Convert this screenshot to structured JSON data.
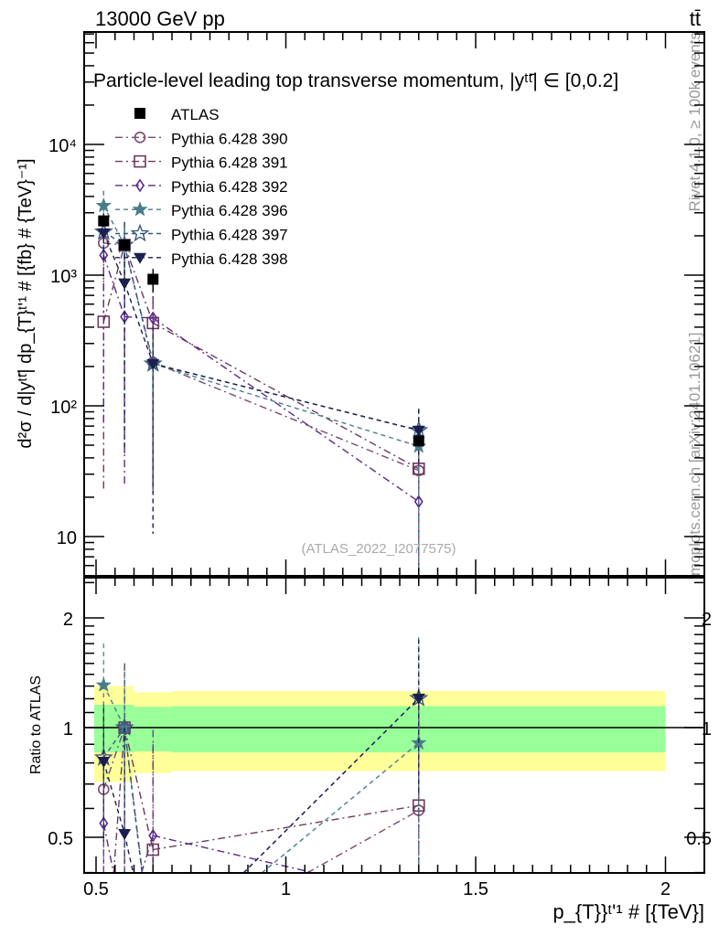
{
  "header": {
    "energy": "13000 GeV pp",
    "process": "tt̄"
  },
  "side_labels": {
    "rivet": "Rivet 4.1.0, ≥ 100k events",
    "mcplots": "mcplots.cern.ch [arXiv:2401.10621]"
  },
  "chart_data": [
    {
      "type": "scatter",
      "title": "Particle-level leading top transverse momentum, |yᵗᵗ̄| ∈ [0,0.2]",
      "watermark": "(ATLAS_2022_I2077575)",
      "ylabel": "d²σ / d|yᵗᵗ̄| dp_{T}ᵗ'¹ # [{fb} # {TeV}⁻¹]",
      "xlabel": "p_{T}}ᵗ'¹ # [{TeV}]",
      "yscale": "log",
      "ylim": [
        4.9,
        72000
      ],
      "xlim": [
        0.47,
        2.1
      ],
      "yticks": [
        {
          "v": 10000,
          "label": "10⁴"
        },
        {
          "v": 1000,
          "label": "10³"
        },
        {
          "v": 100,
          "label": "10²"
        },
        {
          "v": 10,
          "label": "10"
        }
      ],
      "x": [
        0.52,
        0.575,
        0.65,
        1.35
      ],
      "legend_position": "top-left",
      "series": [
        {
          "name": "ATLAS",
          "marker": "filled-square",
          "color": "#000000",
          "style": "none",
          "values": [
            2600,
            1700,
            930,
            54
          ],
          "rel_err": [
            0.05,
            0.05,
            0.2,
            0.1
          ]
        },
        {
          "name": "Pythia 6.428 390",
          "marker": "open-circle",
          "color": "#7b4a6e",
          "style": "dashdot",
          "values": [
            1760,
            1700,
            215,
            32
          ],
          "rel_err": [
            0.5,
            0.5,
            0.9,
            0.9
          ]
        },
        {
          "name": "Pythia 6.428 391",
          "marker": "open-square",
          "color": "#6b3b5c",
          "style": "dashdot",
          "values": [
            440,
            1700,
            430,
            33
          ],
          "rel_err": [
            0.95,
            0.5,
            0.95,
            0.95
          ]
        },
        {
          "name": "Pythia 6.428 392",
          "marker": "open-diamond",
          "color": "#5b2a8c",
          "style": "dashdot",
          "values": [
            1420,
            480,
            470,
            18.5
          ],
          "rel_err": [
            0.95,
            0.95,
            0.95,
            0.95
          ]
        },
        {
          "name": "Pythia 6.428 396",
          "marker": "filled-star",
          "color": "#4a7d8c",
          "style": "dashed",
          "values": [
            3400,
            1700,
            210,
            49
          ],
          "rel_err": [
            0.3,
            0.4,
            0.5,
            0.95
          ]
        },
        {
          "name": "Pythia 6.428 397",
          "marker": "open-star",
          "color": "#3b5a7c",
          "style": "dashed",
          "values": [
            2150,
            1700,
            210,
            65
          ],
          "rel_err": [
            0.4,
            0.5,
            0.4,
            0.45
          ]
        },
        {
          "name": "Pythia 6.428 398",
          "marker": "filled-triangle-down",
          "color": "#1b1f4f",
          "style": "dashed",
          "values": [
            2100,
            870,
            210,
            65
          ],
          "rel_err": [
            0.4,
            0.95,
            0.95,
            0.45
          ]
        }
      ]
    },
    {
      "type": "scatter",
      "ylabel": "Ratio to ATLAS",
      "yscale": "log",
      "ylim": [
        0.4,
        2.58
      ],
      "yticks": [
        {
          "v": 2,
          "label": "2"
        },
        {
          "v": 1,
          "label": "1"
        },
        {
          "v": 0.5,
          "label": "0.5"
        }
      ],
      "xticks": [
        {
          "v": 0.5,
          "label": "0.5"
        },
        {
          "v": 1,
          "label": "1"
        },
        {
          "v": 1.5,
          "label": "1.5"
        },
        {
          "v": 2,
          "label": "2"
        }
      ],
      "bands": [
        {
          "x0": 0.495,
          "x1": 0.6,
          "inner": [
            0.855,
            1.155
          ],
          "outer": [
            0.71,
            1.3
          ]
        },
        {
          "x0": 0.6,
          "x1": 0.7,
          "inner": [
            0.86,
            1.14
          ],
          "outer": [
            0.75,
            1.25
          ]
        },
        {
          "x0": 0.7,
          "x1": 2.0,
          "inner": [
            0.855,
            1.145
          ],
          "outer": [
            0.76,
            1.26
          ]
        }
      ],
      "band_colors": {
        "inner": "#99ff99",
        "outer": "#ffff99"
      }
    }
  ]
}
